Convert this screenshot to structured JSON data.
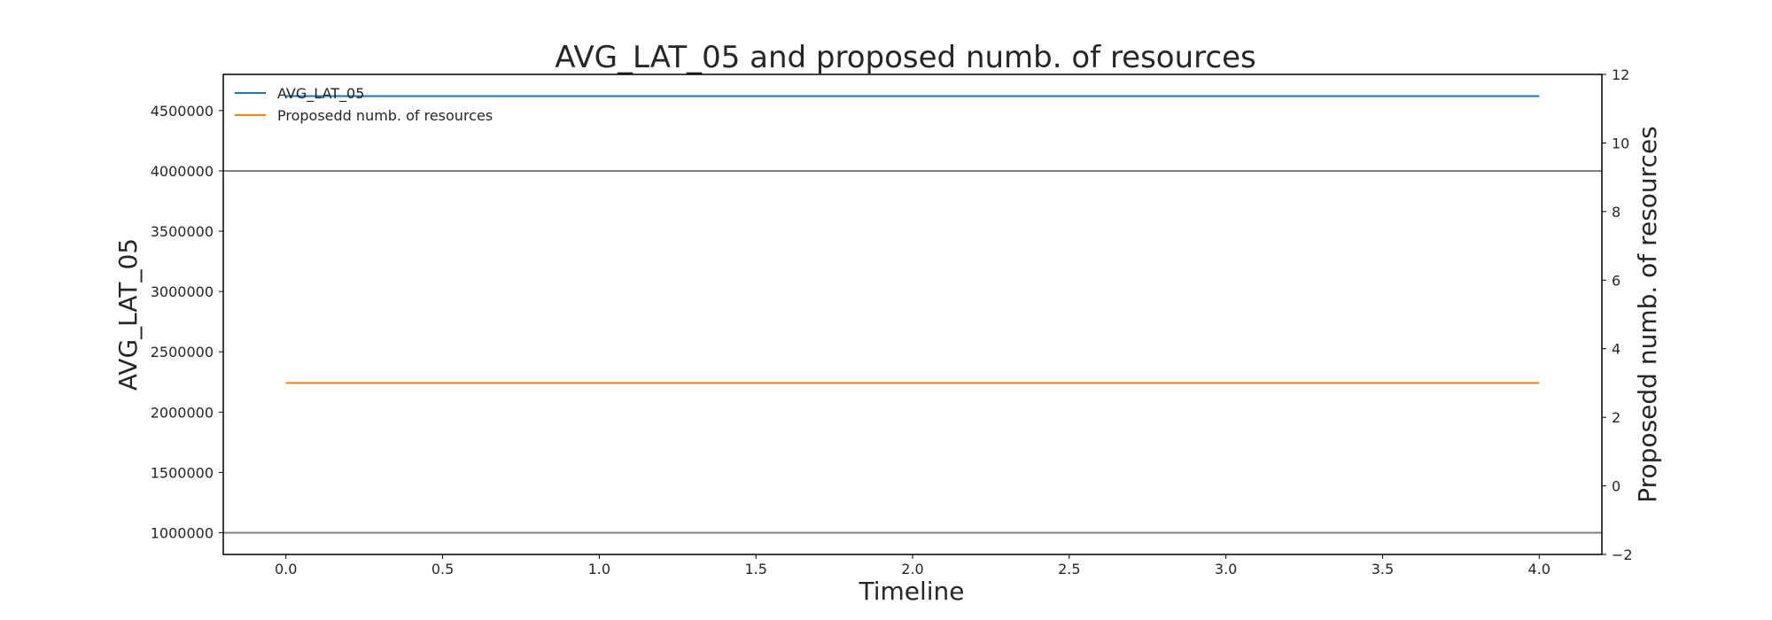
{
  "chart_data": {
    "type": "line",
    "title": "AVG_LAT_05 and proposed numb. of resources",
    "xlabel": "Timeline",
    "ylabel_left": "AVG_LAT_05",
    "ylabel_right": "Proposedd numb. of resources",
    "xlim": [
      -0.2,
      4.2
    ],
    "ylim_left": [
      820000,
      4800000
    ],
    "ylim_right": [
      -2,
      12
    ],
    "x_ticks": [
      "0.0",
      "0.5",
      "1.0",
      "1.5",
      "2.0",
      "2.5",
      "3.0",
      "3.5",
      "4.0"
    ],
    "y_left_ticks": [
      "1000000",
      "1500000",
      "2000000",
      "2500000",
      "3000000",
      "3500000",
      "4000000",
      "4500000"
    ],
    "y_right_ticks": [
      "−2",
      "0",
      "2",
      "4",
      "6",
      "8",
      "10",
      "12"
    ],
    "horizontal_lines_left": [
      4000000,
      1000000
    ],
    "grid": false,
    "legend_position": "top-left",
    "series": [
      {
        "name": "AVG_LAT_05",
        "axis": "left",
        "color": "#1f77b4",
        "x": [
          0,
          1,
          2,
          3,
          4
        ],
        "values": [
          4620000,
          4620000,
          4620000,
          4620000,
          4620000
        ]
      },
      {
        "name": "Proposedd numb. of resources",
        "axis": "right",
        "color": "#ff7f0e",
        "x": [
          0,
          1,
          2,
          3,
          4
        ],
        "values": [
          3,
          3,
          3,
          3,
          3
        ]
      }
    ]
  }
}
